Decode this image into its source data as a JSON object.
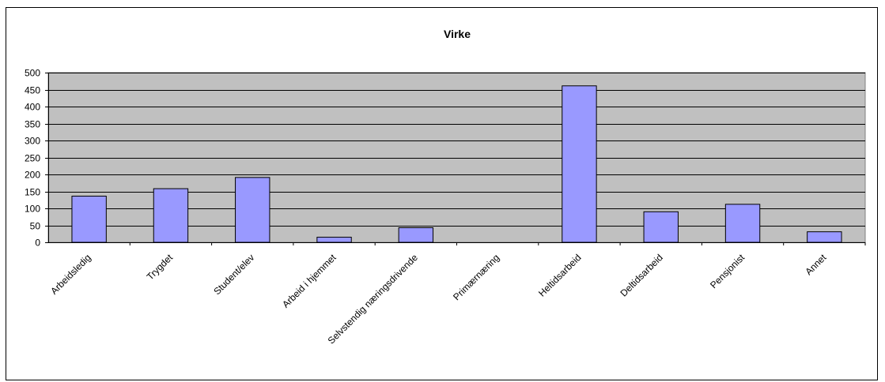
{
  "chart_data": {
    "type": "bar",
    "title": "Virke",
    "xlabel": "",
    "ylabel": "",
    "ylim": [
      0,
      500
    ],
    "yticks": [
      0,
      50,
      100,
      150,
      200,
      250,
      300,
      350,
      400,
      450,
      500
    ],
    "categories": [
      "Arbeidsledig",
      "Trygdet",
      "Student/elev",
      "Arbeid i hjemmet",
      "Selvstendig næringsdrivende",
      "Primærnæring",
      "Heltidsarbeid",
      "Deltidsarbeid",
      "Pensjonist",
      "Annet"
    ],
    "values": [
      136,
      158,
      191,
      15,
      43,
      0,
      461,
      90,
      112,
      31
    ],
    "grid": true,
    "legend": "none",
    "colors": {
      "plot_background": "#c0c0c0",
      "bar_fill": "#9999ff",
      "bar_stroke": "#000000",
      "gridline": "#000000"
    }
  }
}
